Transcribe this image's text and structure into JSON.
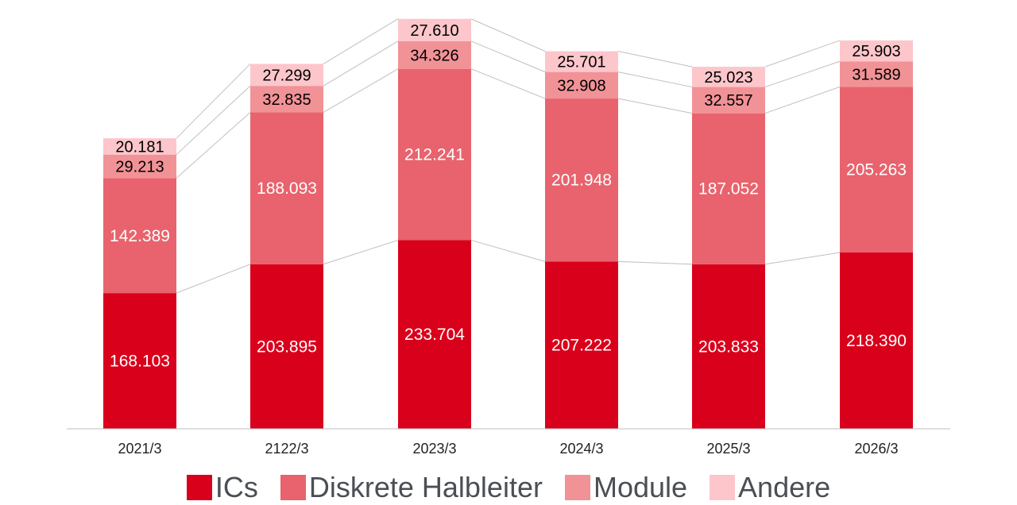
{
  "chart_data": {
    "type": "bar",
    "stacked": true,
    "categories": [
      "2021/3",
      "2122/3",
      "2023/3",
      "2024/3",
      "2025/3",
      "2026/3"
    ],
    "series": [
      {
        "name": "ICs",
        "color": "#d9001b",
        "label_color": "#ffffff",
        "values": [
          168.103,
          203.895,
          233.704,
          207.222,
          203.833,
          218.39
        ],
        "labels": [
          "168.103",
          "203.895",
          "233.704",
          "207.222",
          "203.833",
          "218.390"
        ]
      },
      {
        "name": "Diskrete Halbleiter",
        "color": "#e8636d",
        "label_color": "#ffffff",
        "values": [
          142.389,
          188.093,
          212.241,
          201.948,
          187.052,
          205.263
        ],
        "labels": [
          "142.389",
          "188.093",
          "212.241",
          "201.948",
          "187.052",
          "205.263"
        ]
      },
      {
        "name": "Module",
        "color": "#f19297",
        "label_color": "#000000",
        "values": [
          29.213,
          32.835,
          34.326,
          32.908,
          32.557,
          31.589
        ],
        "labels": [
          "29.213",
          "32.835",
          "34.326",
          "32.908",
          "32.557",
          "31.589"
        ]
      },
      {
        "name": "Andere",
        "color": "#fcc6cb",
        "label_color": "#000000",
        "values": [
          20.181,
          27.299,
          27.61,
          25.701,
          25.023,
          25.903
        ],
        "labels": [
          "20.181",
          "27.299",
          "27.610",
          "25.701",
          "25.023",
          "25.903"
        ]
      }
    ],
    "ylim": [
      0,
      510
    ],
    "grid": false,
    "series_connector_lines": true,
    "legend_position": "bottom"
  },
  "legend": {
    "items": [
      {
        "label": "ICs",
        "color": "#d9001b"
      },
      {
        "label": "Diskrete Halbleiter",
        "color": "#e8636d"
      },
      {
        "label": "Module",
        "color": "#f19297"
      },
      {
        "label": "Andere",
        "color": "#fcc6cb"
      }
    ]
  }
}
